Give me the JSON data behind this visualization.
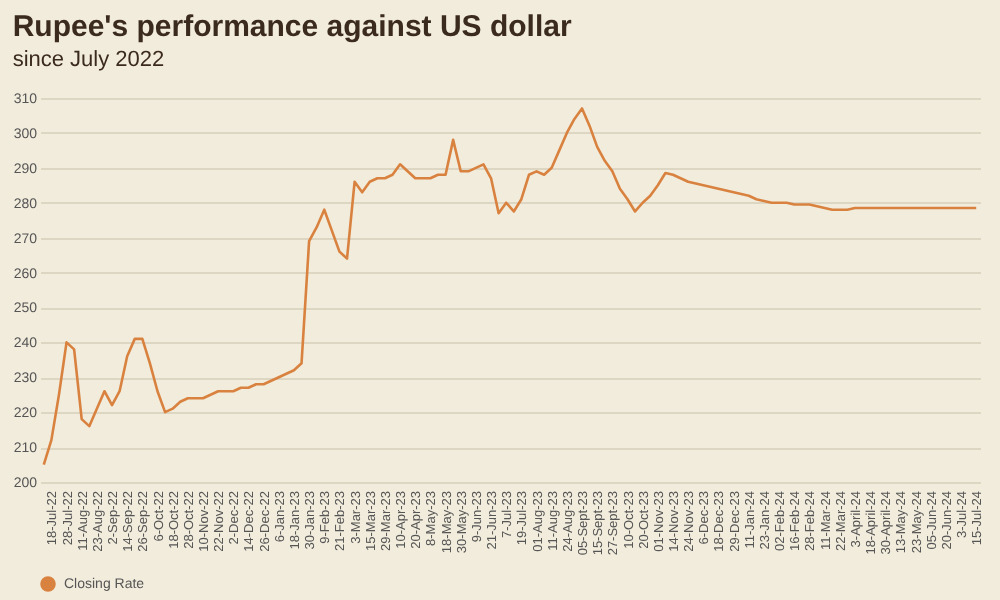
{
  "chart_data": {
    "type": "line",
    "title": "Rupee's performance against US dollar",
    "subtitle": "since July 2022",
    "categories": [
      null,
      "18-Jul-22",
      null,
      "28-Jul-22",
      null,
      "11-Aug-22",
      null,
      "23-Aug-22",
      null,
      "2-Sep-22",
      null,
      "14-Sep-22",
      null,
      "26-Sep-22",
      null,
      "6-Oct-22",
      null,
      "18-Oct-22",
      null,
      "28-Oct-22",
      null,
      "10-Nov-22",
      null,
      "22-Nov-22",
      null,
      "2-Dec-22",
      null,
      "14-Dec-22",
      null,
      "26-Dec-22",
      null,
      "6-Jan-23",
      null,
      "18-Jan-23",
      null,
      "30-Jan-23",
      null,
      "9-Feb-23",
      null,
      "21-Feb-23",
      null,
      "3-Mar-23",
      null,
      "15-Mar-23",
      null,
      "29-Mar-23",
      null,
      "10-Apr-23",
      null,
      "20-Apr-23",
      null,
      "8-May-23",
      null,
      "18-May-23",
      null,
      "30-May-23",
      null,
      "9-Jun-23",
      null,
      "21-Jun-23",
      null,
      "7-Jul-23",
      null,
      "19-Jul-23",
      null,
      "01-Aug-23",
      null,
      "11-Aug-23",
      null,
      "24-Aug-23",
      null,
      "05-Sept-23",
      null,
      "15-Sept-23",
      null,
      "27-Sept-23",
      null,
      "10-Oct-23",
      null,
      "20-Oct-23",
      null,
      "01-Nov-23",
      null,
      "14-Nov-23",
      null,
      "24-Nov-23",
      null,
      "6-Dec-23",
      null,
      "18-Dec-23",
      null,
      "29-Dec-23",
      null,
      "11-Jan-24",
      null,
      "23-Jan-24",
      null,
      "02-Feb-24",
      null,
      "16-Feb-24",
      null,
      "28-Feb-24",
      null,
      "11-Mar-24",
      null,
      "22-Mar-24",
      null,
      "3-April-24",
      null,
      "18-April-24",
      null,
      "30-April-24",
      null,
      "13-May-24",
      null,
      "23-May-24",
      null,
      "05-Jun-24",
      null,
      "20-Jun-24",
      null,
      "3-Jul-24",
      null,
      "15-Jul-24"
    ],
    "series": [
      {
        "name": "Closing Rate",
        "color": "#d9823f",
        "values": [
          205,
          212,
          225,
          240,
          238,
          218,
          216,
          221,
          226,
          222,
          226,
          236,
          241,
          241,
          234,
          226,
          220,
          221,
          223,
          224,
          224,
          224,
          225,
          226,
          226,
          226,
          227,
          227,
          228,
          228,
          229,
          230,
          231,
          232,
          234,
          269,
          273,
          278,
          272,
          266,
          264,
          286,
          283,
          286,
          287,
          287,
          288,
          291,
          289,
          287,
          287,
          287,
          288,
          288,
          298,
          289,
          289,
          290,
          291,
          287,
          277,
          280,
          277.5,
          281,
          288,
          289,
          288,
          290,
          295,
          300,
          304,
          307,
          302,
          296,
          292,
          289,
          284,
          281,
          277.5,
          280,
          282,
          285,
          288.5,
          288,
          287,
          286,
          285.5,
          285,
          284.5,
          284,
          283.5,
          283,
          282.5,
          282,
          281,
          280.5,
          280,
          280,
          280,
          279.5,
          279.5,
          279.5,
          279,
          278.5,
          278,
          278,
          278,
          278.5,
          278.5,
          278.5,
          278.5,
          278.5,
          278.5,
          278.5,
          278.5,
          278.5,
          278.5,
          278.5,
          278.5,
          278.5,
          278.5,
          278.5,
          278.5,
          278.5
        ]
      }
    ],
    "ylim": [
      200,
      310
    ],
    "yticks": [
      200,
      210,
      220,
      230,
      240,
      250,
      260,
      270,
      280,
      290,
      300,
      310
    ],
    "grid": "y",
    "legend": "bottom",
    "marker": "none",
    "line_style": "solid"
  }
}
